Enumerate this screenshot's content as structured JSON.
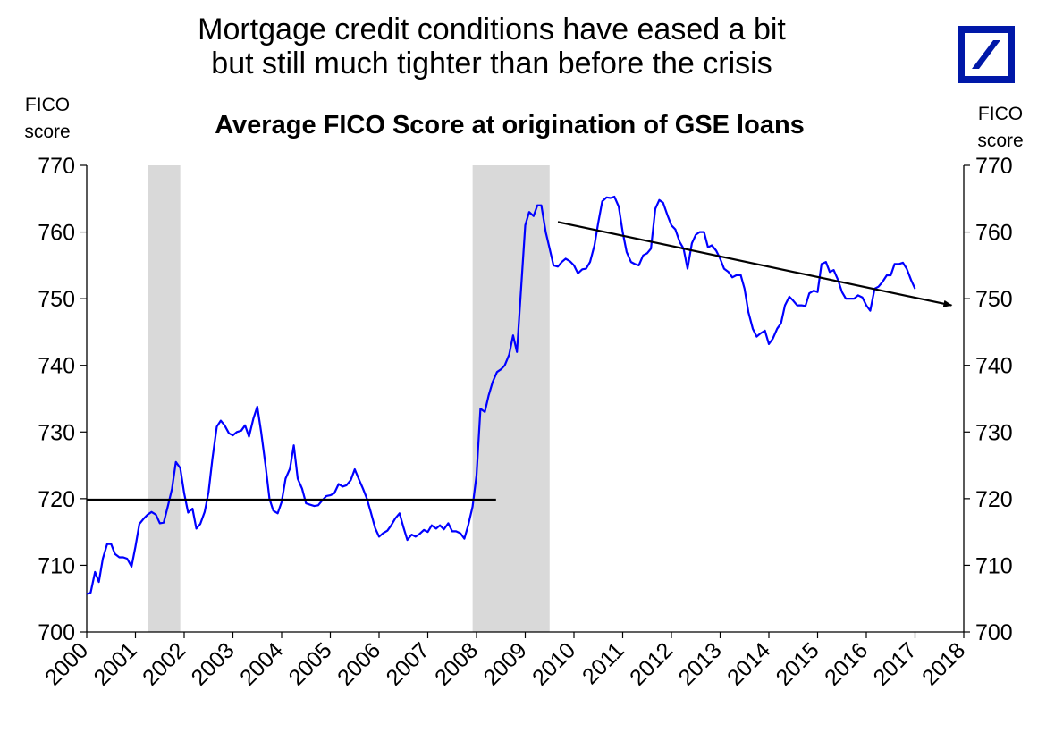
{
  "headline": {
    "line1": "Mortgage credit conditions have eased a bit",
    "line2": "but still much tighter than before the crisis"
  },
  "logo": {
    "icon": "deutsche-bank-logo-icon",
    "color": "#0018a8"
  },
  "chart_data": {
    "type": "line",
    "title": "Average FICO Score at origination of GSE loans",
    "ylabel_left": [
      "FICO",
      "score"
    ],
    "ylabel_right": [
      "FICO",
      "score"
    ],
    "ylim": [
      700,
      770
    ],
    "yticks": [
      "700",
      "710",
      "720",
      "730",
      "740",
      "750",
      "760",
      "770"
    ],
    "xlim": [
      2000,
      2018
    ],
    "xticks": [
      "2000",
      "2001",
      "2002",
      "2003",
      "2004",
      "2005",
      "2006",
      "2007",
      "2008",
      "2009",
      "2010",
      "2011",
      "2012",
      "2013",
      "2014",
      "2015",
      "2016",
      "2017",
      "2018"
    ],
    "line_color": "#0000ff",
    "recession_shading": [
      [
        2001.25,
        2001.92
      ],
      [
        2007.92,
        2009.5
      ]
    ],
    "reference_line": {
      "y": 719.8,
      "x_start": 2000,
      "x_end": 2008.4
    },
    "trend_arrow": {
      "x_start": 2009.67,
      "y_start": 761.5,
      "x_end": 2017.75,
      "y_end": 749
    },
    "series": [
      {
        "x": [
          2000.0,
          2000.08,
          2000.17,
          2000.25,
          2000.33,
          2000.42,
          2000.5,
          2000.58,
          2000.67,
          2000.75,
          2000.83,
          2000.92,
          2001.0,
          2001.08,
          2001.17,
          2001.25,
          2001.33,
          2001.42,
          2001.5,
          2001.58,
          2001.67,
          2001.75,
          2001.83,
          2001.92,
          2002.0,
          2002.08,
          2002.17,
          2002.25,
          2002.33,
          2002.42,
          2002.5,
          2002.58,
          2002.67,
          2002.75,
          2002.83,
          2002.92,
          2003.0,
          2003.08,
          2003.17,
          2003.25,
          2003.33,
          2003.42,
          2003.5,
          2003.58,
          2003.67,
          2003.75,
          2003.83,
          2003.92,
          2004.0,
          2004.08,
          2004.17,
          2004.25,
          2004.33,
          2004.42,
          2004.5,
          2004.58,
          2004.67,
          2004.75,
          2004.83,
          2004.92,
          2005.0,
          2005.08,
          2005.17,
          2005.25,
          2005.33,
          2005.42,
          2005.5,
          2005.58,
          2005.67,
          2005.75,
          2005.83,
          2005.92,
          2006.0,
          2006.08,
          2006.17,
          2006.25,
          2006.33,
          2006.42,
          2006.5,
          2006.58,
          2006.67,
          2006.75,
          2006.83,
          2006.92,
          2007.0,
          2007.08,
          2007.17,
          2007.25,
          2007.33,
          2007.42,
          2007.5,
          2007.58,
          2007.67,
          2007.75,
          2007.83,
          2007.92,
          2008.0,
          2008.08,
          2008.17,
          2008.25,
          2008.33,
          2008.42,
          2008.5,
          2008.58,
          2008.67,
          2008.75,
          2008.83,
          2008.92,
          2009.0,
          2009.08,
          2009.17,
          2009.25,
          2009.33,
          2009.42,
          2009.5,
          2009.58,
          2009.67,
          2009.75,
          2009.83,
          2009.92,
          2010.0,
          2010.08,
          2010.17,
          2010.25,
          2010.33,
          2010.42,
          2010.5,
          2010.58,
          2010.67,
          2010.75,
          2010.83,
          2010.92,
          2011.0,
          2011.08,
          2011.17,
          2011.25,
          2011.33,
          2011.42,
          2011.5,
          2011.58,
          2011.67,
          2011.75,
          2011.83,
          2011.92,
          2012.0,
          2012.08,
          2012.17,
          2012.25,
          2012.33,
          2012.42,
          2012.5,
          2012.58,
          2012.67,
          2012.75,
          2012.83,
          2012.92,
          2013.0,
          2013.08,
          2013.17,
          2013.25,
          2013.33,
          2013.42,
          2013.5,
          2013.58,
          2013.67,
          2013.75,
          2013.83,
          2013.92,
          2014.0,
          2014.08,
          2014.17,
          2014.25,
          2014.33,
          2014.42,
          2014.5,
          2014.58,
          2014.67,
          2014.75,
          2014.83,
          2014.92,
          2015.0,
          2015.08,
          2015.17,
          2015.25,
          2015.33,
          2015.42,
          2015.5,
          2015.58,
          2015.67,
          2015.75,
          2015.83,
          2015.92,
          2016.0,
          2016.08,
          2016.17,
          2016.25,
          2016.33,
          2016.42,
          2016.5,
          2016.58,
          2016.67,
          2016.75,
          2016.83,
          2016.92,
          2017.0
        ],
        "values": [
          705.7,
          705.9,
          709.0,
          707.5,
          711.0,
          713.2,
          713.2,
          711.7,
          711.2,
          711.2,
          711.0,
          709.8,
          712.8,
          716.2,
          717.0,
          717.6,
          718.0,
          717.6,
          716.3,
          716.4,
          719.0,
          721.5,
          725.5,
          724.6,
          720.8,
          717.9,
          718.5,
          715.5,
          716.2,
          718.0,
          721.0,
          726.0,
          730.8,
          731.7,
          731.0,
          729.8,
          729.5,
          730.0,
          730.2,
          731.0,
          729.3,
          732.0,
          733.8,
          730.0,
          725.0,
          720.0,
          718.2,
          717.8,
          719.5,
          723.0,
          724.5,
          728.0,
          723.0,
          721.5,
          719.3,
          719.1,
          718.9,
          719.0,
          719.7,
          720.4,
          720.5,
          720.8,
          722.2,
          721.8,
          722.0,
          722.8,
          724.4,
          723.0,
          721.5,
          720.0,
          718.0,
          715.6,
          714.3,
          714.8,
          715.2,
          716.0,
          717.0,
          717.8,
          715.7,
          713.8,
          714.6,
          714.3,
          714.7,
          715.3,
          715.0,
          716.0,
          715.5,
          716.0,
          715.4,
          716.3,
          715.1,
          715.1,
          714.8,
          714.0,
          716.0,
          718.8,
          723.5,
          733.5,
          733.0,
          735.5,
          737.5,
          739.0,
          739.4,
          740.0,
          741.6,
          744.5,
          742.0,
          752.0,
          761.0,
          763.0,
          762.4,
          764.0,
          764.0,
          760.0,
          757.5,
          755.0,
          754.8,
          755.5,
          756.0,
          755.6,
          755.0,
          753.8,
          754.4,
          754.5,
          755.5,
          758.0,
          761.5,
          764.6,
          765.2,
          765.1,
          765.3,
          763.8,
          760.0,
          757.0,
          755.5,
          755.2,
          755.0,
          756.5,
          756.8,
          757.5,
          763.5,
          764.8,
          764.4,
          762.5,
          761.0,
          760.4,
          758.5,
          757.5,
          754.5,
          758.3,
          759.6,
          760.0,
          760.0,
          757.7,
          758.0,
          757.2,
          756.0,
          754.5,
          754.0,
          753.2,
          753.5,
          753.6,
          751.5,
          748.0,
          745.5,
          744.3,
          744.8,
          745.2,
          743.2,
          744.0,
          745.5,
          746.3,
          749.0,
          750.3,
          749.7,
          749.0,
          749.0,
          748.9,
          750.8,
          751.2,
          751.0,
          755.2,
          755.5,
          754.0,
          754.3,
          752.8,
          751.0,
          750.0,
          750.0,
          750.0,
          750.5,
          750.2,
          749.0,
          748.2,
          751.5,
          751.8,
          752.5,
          753.5,
          753.5,
          755.2,
          755.2,
          755.4,
          754.5,
          752.8,
          751.5
        ]
      }
    ]
  }
}
